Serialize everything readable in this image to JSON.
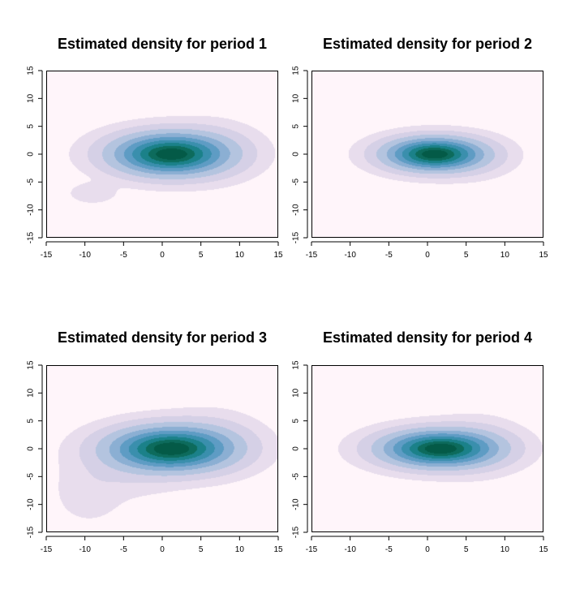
{
  "colors": {
    "background": "#fff5fa",
    "levels": [
      "#fff5fa",
      "#e8dded",
      "#d5d0e6",
      "#b4c4df",
      "#8bafd3",
      "#5e9cc4",
      "#3a8fad",
      "#1b8189",
      "#0d6b5c",
      "#045a47"
    ]
  },
  "chart_data": [
    {
      "type": "heatmap",
      "title": "Estimated density for period 1",
      "xlim": [
        -15,
        15
      ],
      "ylim": [
        -15,
        15
      ],
      "xticks": [
        -15,
        -10,
        -5,
        0,
        5,
        10,
        15
      ],
      "yticks": [
        -15,
        -10,
        -5,
        0,
        5,
        10,
        15
      ],
      "components": [
        {
          "cx": 1.0,
          "cy": 0.0,
          "sx": 4.5,
          "sy": 2.3,
          "w": 1.0
        },
        {
          "cx": 6.5,
          "cy": 0.6,
          "sx": 3.5,
          "sy": 3.0,
          "w": 0.07
        },
        {
          "cx": -9.0,
          "cy": -7.0,
          "sx": 1.8,
          "sy": 1.1,
          "w": 0.05
        }
      ]
    },
    {
      "type": "heatmap",
      "title": "Estimated density for period 2",
      "xlim": [
        -15,
        15
      ],
      "ylim": [
        -15,
        15
      ],
      "xticks": [
        -15,
        -10,
        -5,
        0,
        5,
        10,
        15
      ],
      "yticks": [
        -15,
        -10,
        -5,
        0,
        5,
        10,
        15
      ],
      "components": [
        {
          "cx": 0.8,
          "cy": 0.0,
          "sx": 3.8,
          "sy": 1.8,
          "w": 1.0
        },
        {
          "cx": 5.5,
          "cy": -0.6,
          "sx": 3.2,
          "sy": 2.2,
          "w": 0.06
        }
      ]
    },
    {
      "type": "heatmap",
      "title": "Estimated density for period 3",
      "xlim": [
        -15,
        15
      ],
      "ylim": [
        -15,
        15
      ],
      "xticks": [
        -15,
        -10,
        -5,
        0,
        5,
        10,
        15
      ],
      "yticks": [
        -15,
        -10,
        -5,
        0,
        5,
        10,
        15
      ],
      "components": [
        {
          "cx": 1.0,
          "cy": 0.0,
          "sx": 4.8,
          "sy": 2.4,
          "w": 1.0
        },
        {
          "cx": 6.5,
          "cy": 1.0,
          "sx": 3.6,
          "sy": 3.2,
          "w": 0.08
        },
        {
          "cx": -5.0,
          "cy": -4.0,
          "sx": 4.5,
          "sy": 3.0,
          "w": 0.045
        },
        {
          "cx": -9.5,
          "cy": -8.5,
          "sx": 2.6,
          "sy": 3.0,
          "w": 0.035
        }
      ]
    },
    {
      "type": "heatmap",
      "title": "Estimated density for period 4",
      "xlim": [
        -15,
        15
      ],
      "ylim": [
        -15,
        15
      ],
      "xticks": [
        -15,
        -10,
        -5,
        0,
        5,
        10,
        15
      ],
      "yticks": [
        -15,
        -10,
        -5,
        0,
        5,
        10,
        15
      ],
      "components": [
        {
          "cx": 1.5,
          "cy": 0.0,
          "sx": 4.5,
          "sy": 2.0,
          "w": 1.0
        },
        {
          "cx": 6.5,
          "cy": 0.5,
          "sx": 3.4,
          "sy": 3.0,
          "w": 0.07
        }
      ]
    }
  ]
}
